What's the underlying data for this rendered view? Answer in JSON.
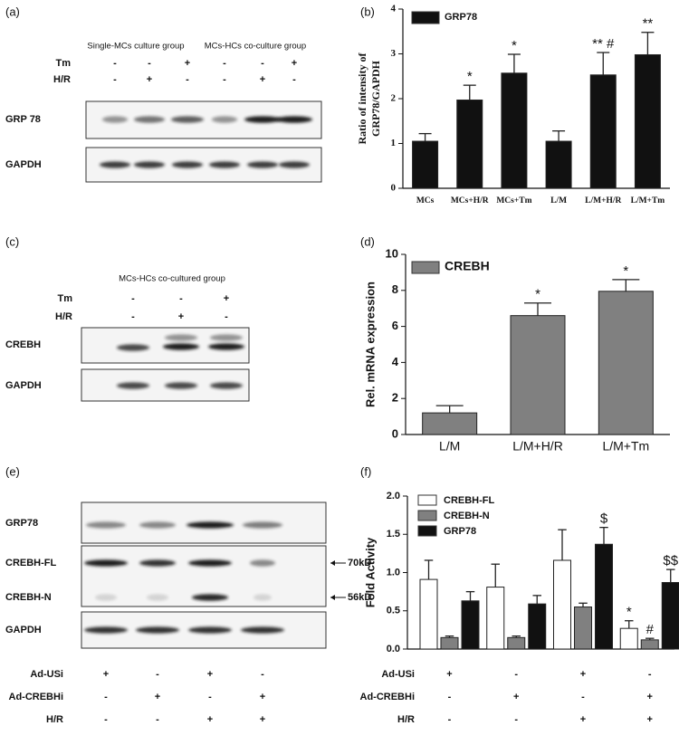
{
  "panel_labels": [
    "(a)",
    "(b)",
    "(c)",
    "(d)",
    "(e)",
    "(f)"
  ],
  "blots": [
    {
      "groups": [
        "Single-MCs culture group",
        "MCs-HCs co-culture group"
      ],
      "conditions": [
        {
          "name": "Tm",
          "signs": [
            "-",
            "-",
            "+",
            "-",
            "-",
            "+"
          ]
        },
        {
          "name": "H/R",
          "signs": [
            "-",
            "+",
            "-",
            "-",
            "+",
            "-"
          ]
        }
      ],
      "rows": [
        "GRP 78",
        "GAPDH"
      ]
    },
    {
      "groups": [
        "MCs-HCs co-cultured group"
      ],
      "conditions": [
        {
          "name": "Tm",
          "signs": [
            "-",
            "-",
            "+"
          ]
        },
        {
          "name": "H/R",
          "signs": [
            "-",
            "+",
            "-"
          ]
        }
      ],
      "rows": [
        "CREBH",
        "GAPDH"
      ]
    },
    {
      "rows": [
        "GRP78",
        "CREBH-FL",
        "CREBH-N",
        "GAPDH"
      ],
      "markers": [
        "70kD",
        "56kD"
      ],
      "conditions": [
        {
          "name": "Ad-USi",
          "signs": [
            "+",
            "-",
            "+",
            "-"
          ]
        },
        {
          "name": "Ad-CREBHi",
          "signs": [
            "-",
            "+",
            "-",
            "+"
          ]
        },
        {
          "name": "H/R",
          "signs": [
            "-",
            "-",
            "+",
            "+"
          ]
        }
      ]
    }
  ],
  "chart_data": [
    {
      "type": "bar",
      "ylabel": [
        "Ratio of intensity of",
        "GRP78/GAPDH"
      ],
      "categories": [
        "MCs",
        "MCs+H/R",
        "MCs+Tm",
        "L/M",
        "L/M+H/R",
        "L/M+Tm"
      ],
      "series": [
        {
          "name": "GRP78",
          "color": "#111111",
          "values": [
            1.05,
            1.97,
            2.57,
            1.05,
            2.53,
            2.98
          ],
          "errors": [
            0.17,
            0.33,
            0.42,
            0.23,
            0.5,
            0.5
          ],
          "annotations": [
            null,
            "*",
            "*",
            null,
            "** #",
            "**"
          ]
        }
      ],
      "ylim": [
        0,
        4
      ],
      "yticks": [
        0,
        1,
        2,
        3,
        4
      ]
    },
    {
      "type": "bar",
      "ylabel": [
        "Rel. mRNA expression"
      ],
      "categories": [
        "L/M",
        "L/M+H/R",
        "L/M+Tm"
      ],
      "series": [
        {
          "name": "CREBH",
          "color": "#808080",
          "values": [
            1.2,
            6.6,
            7.95
          ],
          "errors": [
            0.4,
            0.7,
            0.65
          ],
          "annotations": [
            null,
            "*",
            "*"
          ]
        }
      ],
      "ylim": [
        0,
        10
      ],
      "yticks": [
        0,
        2,
        4,
        6,
        8,
        10
      ]
    },
    {
      "type": "bar",
      "ylabel": [
        "Fold Activity"
      ],
      "series": [
        {
          "name": "CREBH-FL",
          "color": "#ffffff",
          "values": [
            0.91,
            0.81,
            1.16,
            0.27
          ],
          "errors": [
            0.25,
            0.3,
            0.4,
            0.1
          ],
          "annotations": [
            null,
            null,
            null,
            "*"
          ]
        },
        {
          "name": "CREBH-N",
          "color": "#808080",
          "values": [
            0.15,
            0.15,
            0.55,
            0.12
          ],
          "errors": [
            0.02,
            0.02,
            0.05,
            0.02
          ],
          "annotations": [
            null,
            null,
            null,
            "#"
          ]
        },
        {
          "name": "GRP78",
          "color": "#111111",
          "values": [
            0.63,
            0.59,
            1.37,
            0.87
          ],
          "errors": [
            0.12,
            0.11,
            0.22,
            0.17
          ],
          "annotations": [
            null,
            null,
            "$",
            "$$"
          ]
        }
      ],
      "conditions": [
        {
          "name": "Ad-USi",
          "signs": [
            "+",
            "-",
            "+",
            "-"
          ]
        },
        {
          "name": "Ad-CREBHi",
          "signs": [
            "-",
            "+",
            "-",
            "+"
          ]
        },
        {
          "name": "H/R",
          "signs": [
            "-",
            "-",
            "+",
            "+"
          ]
        }
      ],
      "ylim": [
        0,
        2
      ],
      "yticks": [
        {
          "value": 0,
          "label": "0.0"
        },
        {
          "value": 0.5,
          "label": "0.5"
        },
        {
          "value": 1,
          "label": "1.0"
        },
        {
          "value": 1.5,
          "label": "1.5"
        },
        {
          "value": 2,
          "label": "2.0"
        }
      ]
    }
  ]
}
